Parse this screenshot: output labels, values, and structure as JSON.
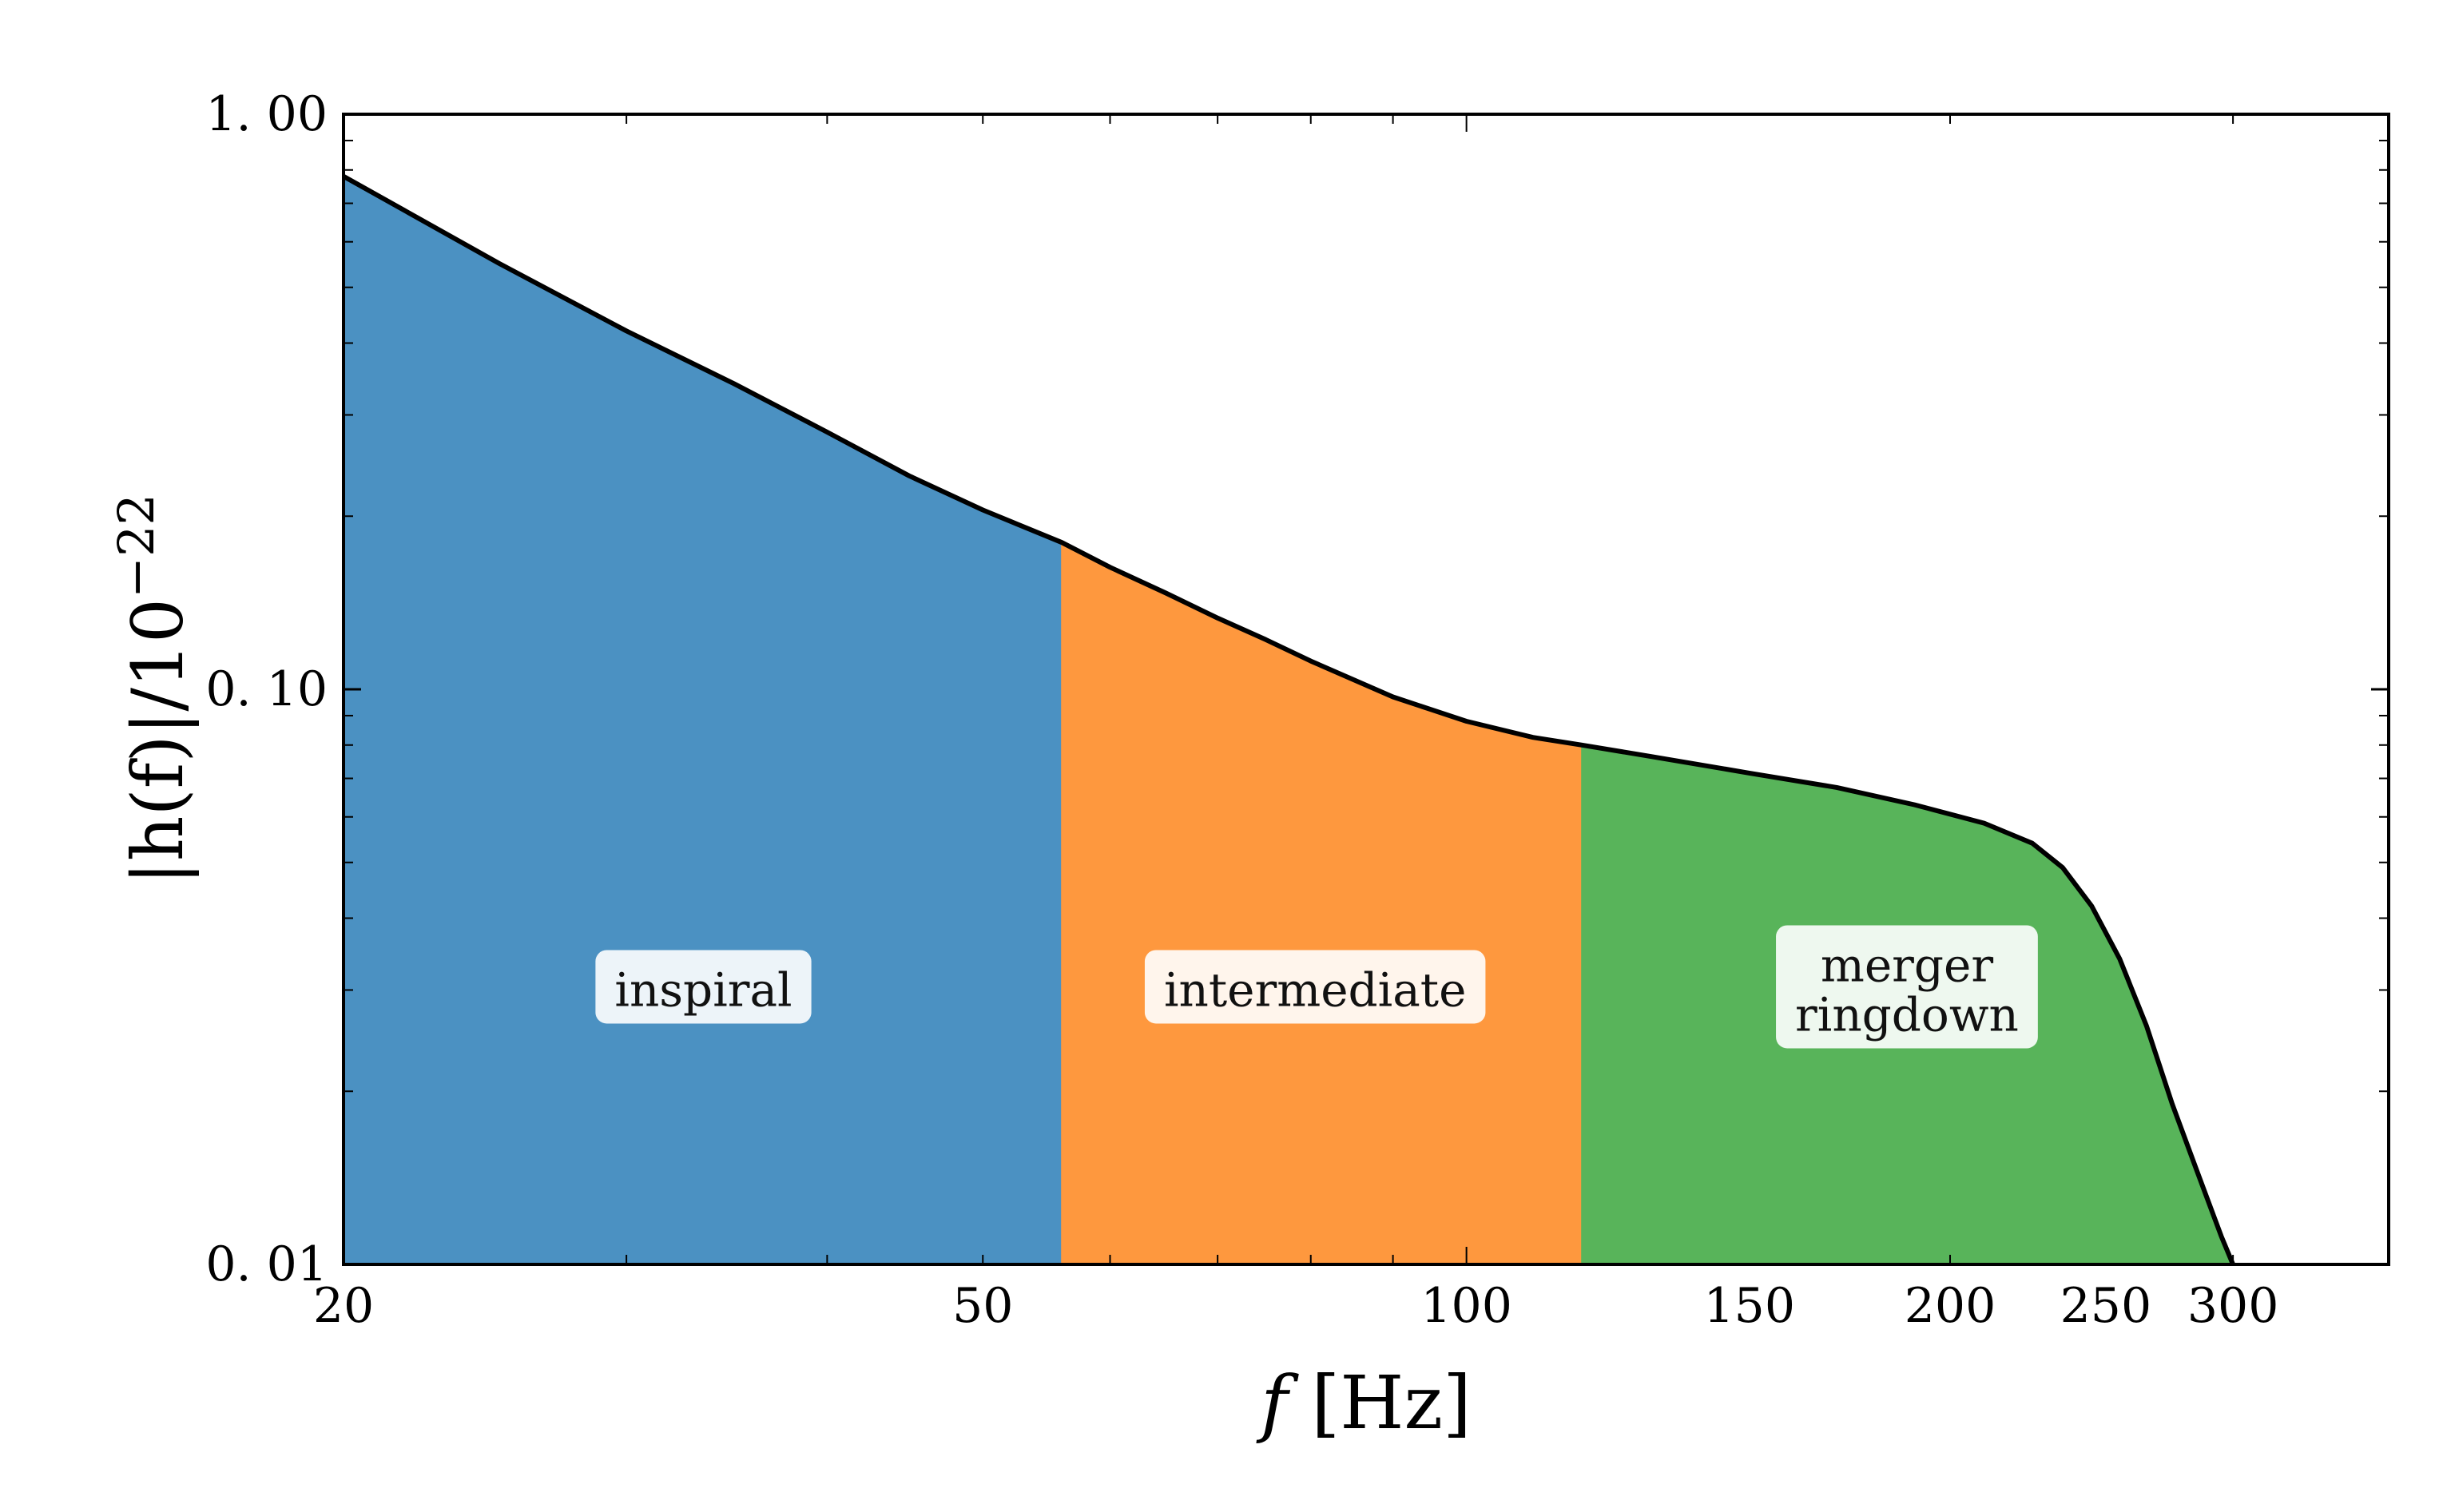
{
  "chart_data": {
    "type": "area",
    "title": "",
    "xlabel": {
      "main": "f",
      "unit": "[Hz]"
    },
    "ylabel": {
      "main": "|h(f)|/10",
      "exponent": "−22"
    },
    "x_scale": "log",
    "y_scale": "log",
    "xlim": [
      20,
      375
    ],
    "ylim": [
      0.01,
      1.0
    ],
    "x_ticks": [
      20,
      50,
      100,
      150,
      200,
      250,
      300
    ],
    "x_tick_labels": [
      "20",
      "50",
      "100",
      "150",
      "200",
      "250",
      "300"
    ],
    "y_ticks": [
      0.01,
      0.1,
      1.0
    ],
    "y_tick_labels": [
      "0. 01",
      "0. 10",
      "1. 00"
    ],
    "grid": false,
    "curve": {
      "color": "#000000",
      "points": [
        [
          20,
          0.78
        ],
        [
          25,
          0.55
        ],
        [
          30,
          0.42
        ],
        [
          35,
          0.34
        ],
        [
          40,
          0.28
        ],
        [
          45,
          0.235
        ],
        [
          50,
          0.205
        ],
        [
          56,
          0.18
        ],
        [
          60,
          0.163
        ],
        [
          65,
          0.147
        ],
        [
          70,
          0.133
        ],
        [
          75,
          0.122
        ],
        [
          80,
          0.112
        ],
        [
          90,
          0.097
        ],
        [
          100,
          0.088
        ],
        [
          110,
          0.0825
        ],
        [
          118,
          0.08
        ],
        [
          130,
          0.0765
        ],
        [
          150,
          0.0715
        ],
        [
          170,
          0.0675
        ],
        [
          190,
          0.063
        ],
        [
          210,
          0.0585
        ],
        [
          225,
          0.054
        ],
        [
          235,
          0.049
        ],
        [
          245,
          0.042
        ],
        [
          255,
          0.034
        ],
        [
          265,
          0.026
        ],
        [
          275,
          0.019
        ],
        [
          285,
          0.0145
        ],
        [
          295,
          0.0112
        ],
        [
          300,
          0.01
        ]
      ]
    },
    "regions": [
      {
        "name": "inspiral",
        "lines": [
          "inspiral"
        ],
        "x_range": [
          20,
          56
        ],
        "color": "#4b91c2",
        "label_x": 33.5,
        "label_y": 0.03
      },
      {
        "name": "intermediate",
        "lines": [
          "intermediate"
        ],
        "x_range": [
          56,
          118
        ],
        "color": "#fe983e",
        "label_x": 80.5,
        "label_y": 0.03
      },
      {
        "name": "merger ringdown",
        "lines": [
          "merger",
          "ringdown"
        ],
        "x_range": [
          118,
          300
        ],
        "color": "#58b45a",
        "label_x": 188,
        "label_y": 0.03
      }
    ],
    "label_box_color": "#ffffff"
  }
}
